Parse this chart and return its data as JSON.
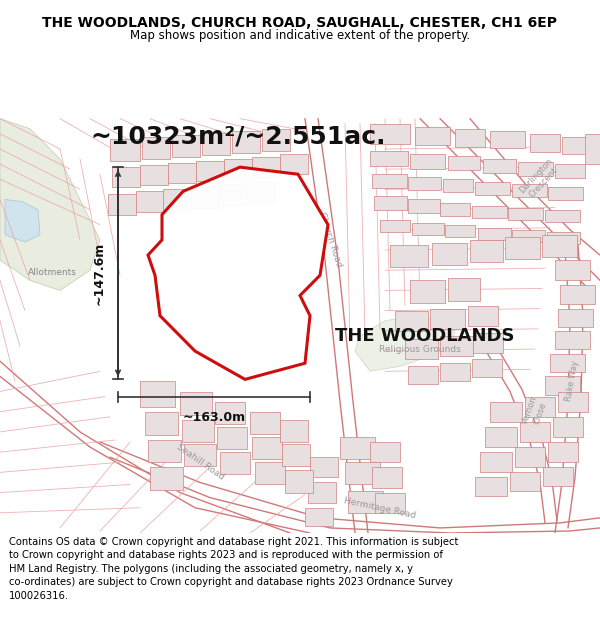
{
  "title": "THE WOODLANDS, CHURCH ROAD, SAUGHALL, CHESTER, CH1 6EP",
  "subtitle": "Map shows position and indicative extent of the property.",
  "footer": "Contains OS data © Crown copyright and database right 2021. This information is subject\nto Crown copyright and database rights 2023 and is reproduced with the permission of\nHM Land Registry. The polygons (including the associated geometry, namely x, y\nco-ordinates) are subject to Crown copyright and database rights 2023 Ordnance Survey\n100026316.",
  "area_label": "~10323m²/~2.551ac.",
  "property_label": "THE WOODLANDS",
  "width_label": "~163.0m",
  "height_label": "~147.6m",
  "map_bg": "#faf6f6",
  "road_fill": "#f5e8e8",
  "road_edge": "#e8a0a0",
  "building_fill": "#e8e0e0",
  "building_edge": "#d08080",
  "green_fill": "#e8ede0",
  "green_edge": "#c0ccb0",
  "blue_fill": "#d0e4ee",
  "blue_edge": "#a8c4d8",
  "prop_edge": "#cc0000",
  "prop_fill": "#ffffff",
  "title_fontsize": 10,
  "subtitle_fontsize": 8.5,
  "footer_fontsize": 7.2,
  "area_fontsize": 18,
  "prop_label_fontsize": 13,
  "note_fontsize": 7
}
